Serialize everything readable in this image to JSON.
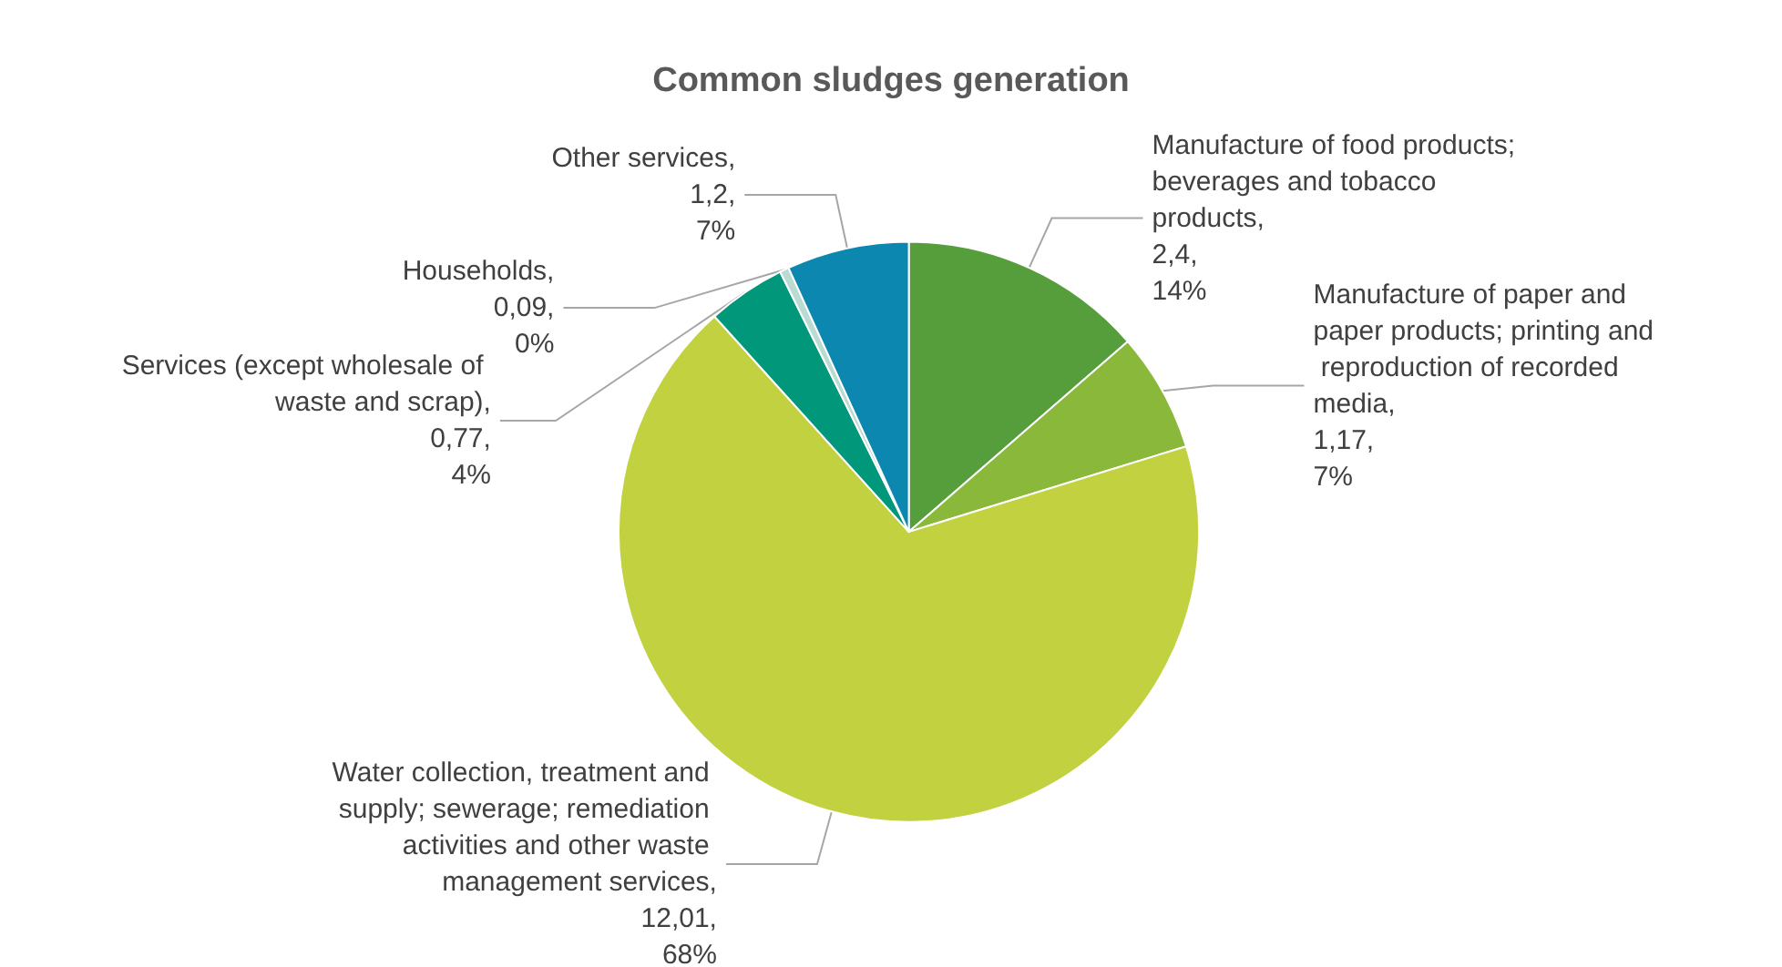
{
  "chart_data": {
    "type": "pie",
    "title": "Common sludges generation",
    "categories": [
      "Manufacture of food products; beverages and tobacco products",
      "Manufacture of paper and paper products; printing and reproduction of recorded media",
      "Water collection, treatment and supply; sewerage; remediation activities and other waste management services",
      "Services (except wholesale of waste and scrap)",
      "Households",
      "Other services"
    ],
    "values": [
      2.4,
      1.17,
      12.01,
      0.77,
      0.09,
      1.2
    ],
    "value_labels": [
      ",\n2,4,\n14%",
      ",\n1,17,\n7%",
      ",\n12,01,\n68%",
      ",\n0,77,\n4%",
      ",\n0,09,\n0%",
      ",\n1,2,\n7%"
    ],
    "colors": [
      "#559e3b",
      "#8ab83a",
      "#c2d140",
      "#00977a",
      "#b9dbd3",
      "#0b87b0"
    ],
    "legend": false
  }
}
